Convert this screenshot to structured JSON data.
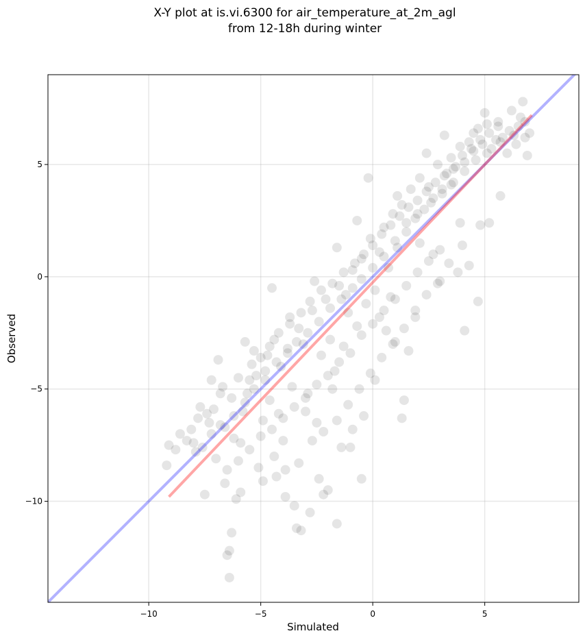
{
  "chart_data": {
    "type": "scatter",
    "title": "X-Y plot at is.vi.6300 for air_temperature_at_2m_agl",
    "subtitle": "from 12-18h during winter",
    "xlabel": "Simulated",
    "ylabel": "Observed",
    "xlim": [
      -14.5,
      9.2
    ],
    "ylim": [
      -14.5,
      9.0
    ],
    "xticks": [
      -10,
      -5,
      0,
      5
    ],
    "yticks": [
      -10,
      -5,
      0,
      5
    ],
    "xtick_labels": [
      "−10",
      "−5",
      "0",
      "5"
    ],
    "ytick_labels": [
      "−10",
      "−5",
      "0",
      "5"
    ],
    "grid": true,
    "point_color": "#000000",
    "point_opacity": 0.1,
    "points": [
      [
        -9.2,
        -8.4
      ],
      [
        -9.1,
        -7.5
      ],
      [
        -8.8,
        -7.7
      ],
      [
        -8.6,
        -7.0
      ],
      [
        -8.3,
        -7.3
      ],
      [
        -8.1,
        -6.8
      ],
      [
        -7.9,
        -7.8
      ],
      [
        -7.7,
        -5.8
      ],
      [
        -7.6,
        -7.6
      ],
      [
        -7.5,
        -9.7
      ],
      [
        -7.3,
        -6.5
      ],
      [
        -7.2,
        -4.6
      ],
      [
        -7.0,
        -8.1
      ],
      [
        -6.9,
        -3.7
      ],
      [
        -6.8,
        -5.2
      ],
      [
        -6.6,
        -6.7
      ],
      [
        -6.5,
        -12.4
      ],
      [
        -6.4,
        -13.4
      ],
      [
        -6.4,
        -12.2
      ],
      [
        -6.3,
        -11.4
      ],
      [
        -6.1,
        -9.9
      ],
      [
        -5.9,
        -7.4
      ],
      [
        -5.7,
        -2.9
      ],
      [
        -5.5,
        -4.6
      ],
      [
        -5.3,
        -3.3
      ],
      [
        -5.1,
        -8.5
      ],
      [
        -4.9,
        -6.4
      ],
      [
        -4.7,
        -3.5
      ],
      [
        -4.5,
        -0.5
      ],
      [
        -4.3,
        -8.9
      ],
      [
        -4.1,
        -4.0
      ],
      [
        -3.9,
        -9.8
      ],
      [
        -3.7,
        -1.8
      ],
      [
        -3.5,
        -10.2
      ],
      [
        -3.4,
        -11.2
      ],
      [
        -3.2,
        -11.3
      ],
      [
        -3.0,
        -6.0
      ],
      [
        -2.8,
        -10.5
      ],
      [
        -2.6,
        -0.2
      ],
      [
        -2.4,
        -9.0
      ],
      [
        -2.2,
        -9.7
      ],
      [
        -2.0,
        -9.5
      ],
      [
        -1.8,
        -5.0
      ],
      [
        -1.6,
        -11.0
      ],
      [
        -1.6,
        1.3
      ],
      [
        -1.4,
        -7.6
      ],
      [
        -1.2,
        -0.8
      ],
      [
        -1.0,
        -7.6
      ],
      [
        -0.9,
        -6.8
      ],
      [
        -0.7,
        2.5
      ],
      [
        -0.5,
        -9.0
      ],
      [
        -0.4,
        -6.2
      ],
      [
        -0.2,
        4.4
      ],
      [
        0.1,
        -4.6
      ],
      [
        0.3,
        -1.8
      ],
      [
        0.6,
        -2.4
      ],
      [
        0.8,
        -0.9
      ],
      [
        1.0,
        -2.9
      ],
      [
        1.1,
        3.6
      ],
      [
        1.3,
        -6.3
      ],
      [
        1.4,
        -5.5
      ],
      [
        1.6,
        -3.3
      ],
      [
        1.9,
        -1.5
      ],
      [
        2.1,
        1.5
      ],
      [
        2.4,
        5.5
      ],
      [
        2.7,
        1.0
      ],
      [
        3.0,
        -0.2
      ],
      [
        3.2,
        6.3
      ],
      [
        3.5,
        4.1
      ],
      [
        3.8,
        0.2
      ],
      [
        4.0,
        1.4
      ],
      [
        4.1,
        -2.4
      ],
      [
        4.3,
        0.5
      ],
      [
        4.5,
        6.4
      ],
      [
        4.7,
        -1.1
      ],
      [
        4.8,
        2.3
      ],
      [
        5.0,
        7.3
      ],
      [
        5.2,
        2.4
      ],
      [
        5.5,
        6.1
      ],
      [
        5.7,
        3.6
      ],
      [
        6.0,
        5.5
      ],
      [
        6.2,
        7.4
      ],
      [
        6.5,
        6.7
      ],
      [
        6.7,
        7.8
      ],
      [
        6.9,
        5.4
      ],
      [
        7.0,
        6.4
      ],
      [
        -6.2,
        -7.2
      ],
      [
        -5.8,
        -6.0
      ],
      [
        -5.6,
        -5.2
      ],
      [
        -5.2,
        -4.4
      ],
      [
        -4.8,
        -4.6
      ],
      [
        -4.6,
        -5.5
      ],
      [
        -4.4,
        -2.8
      ],
      [
        -4.2,
        -6.1
      ],
      [
        -4.0,
        -7.3
      ],
      [
        -3.8,
        -3.2
      ],
      [
        -3.6,
        -4.9
      ],
      [
        -3.3,
        -2.3
      ],
      [
        -3.1,
        -3.0
      ],
      [
        -2.9,
        -5.2
      ],
      [
        -2.7,
        -1.5
      ],
      [
        -2.5,
        -6.5
      ],
      [
        -2.3,
        -3.5
      ],
      [
        -2.1,
        -1.0
      ],
      [
        -1.9,
        -2.8
      ],
      [
        -1.7,
        -4.2
      ],
      [
        -1.5,
        -0.4
      ],
      [
        -1.3,
        -3.1
      ],
      [
        -1.1,
        -1.6
      ],
      [
        -0.9,
        0.3
      ],
      [
        -0.7,
        -2.2
      ],
      [
        -0.5,
        0.8
      ],
      [
        -0.3,
        -1.2
      ],
      [
        -0.1,
        1.7
      ],
      [
        0.1,
        -0.6
      ],
      [
        0.3,
        1.1
      ],
      [
        0.5,
        2.2
      ],
      [
        0.7,
        0.4
      ],
      [
        0.9,
        2.8
      ],
      [
        1.1,
        1.3
      ],
      [
        1.3,
        3.2
      ],
      [
        1.5,
        2.0
      ],
      [
        1.7,
        3.9
      ],
      [
        1.9,
        2.6
      ],
      [
        2.1,
        4.4
      ],
      [
        2.3,
        3.0
      ],
      [
        2.5,
        4.0
      ],
      [
        2.7,
        3.5
      ],
      [
        2.9,
        5.0
      ],
      [
        3.1,
        3.7
      ],
      [
        3.3,
        4.6
      ],
      [
        3.5,
        5.3
      ],
      [
        3.7,
        4.9
      ],
      [
        3.9,
        5.8
      ],
      [
        4.1,
        5.1
      ],
      [
        4.3,
        6.0
      ],
      [
        4.5,
        5.6
      ],
      [
        4.7,
        6.6
      ],
      [
        4.9,
        5.9
      ],
      [
        5.1,
        6.8
      ],
      [
        5.3,
        5.7
      ],
      [
        5.6,
        6.9
      ],
      [
        5.8,
        6.2
      ],
      [
        6.1,
        6.5
      ],
      [
        6.4,
        5.9
      ],
      [
        6.6,
        7.1
      ],
      [
        6.8,
        6.2
      ],
      [
        -8.0,
        -7.4
      ],
      [
        -7.4,
        -6.1
      ],
      [
        -7.1,
        -5.9
      ],
      [
        -6.7,
        -4.9
      ],
      [
        -6.3,
        -5.4
      ],
      [
        -6.0,
        -4.5
      ],
      [
        -5.4,
        -3.9
      ],
      [
        -5.0,
        -3.6
      ],
      [
        -4.6,
        -3.1
      ],
      [
        -4.2,
        -2.5
      ],
      [
        -3.7,
        -2.1
      ],
      [
        -3.2,
        -1.6
      ],
      [
        -2.8,
        -1.1
      ],
      [
        -2.3,
        -0.6
      ],
      [
        -1.8,
        -0.3
      ],
      [
        -1.3,
        0.2
      ],
      [
        -0.8,
        0.6
      ],
      [
        -0.4,
        1.0
      ],
      [
        0.0,
        1.4
      ],
      [
        0.4,
        1.9
      ],
      [
        0.8,
        2.3
      ],
      [
        1.2,
        2.7
      ],
      [
        1.6,
        3.1
      ],
      [
        2.0,
        3.4
      ],
      [
        2.4,
        3.8
      ],
      [
        2.8,
        4.2
      ],
      [
        3.2,
        4.5
      ],
      [
        3.6,
        4.8
      ],
      [
        4.0,
        5.4
      ],
      [
        4.4,
        5.7
      ],
      [
        4.8,
        6.1
      ],
      [
        5.2,
        6.4
      ],
      [
        5.6,
        6.7
      ],
      [
        -6.5,
        -8.6
      ],
      [
        -6.0,
        -8.2
      ],
      [
        -5.5,
        -7.7
      ],
      [
        -5.0,
        -7.1
      ],
      [
        -4.5,
        -6.8
      ],
      [
        -4.0,
        -6.3
      ],
      [
        -3.5,
        -5.8
      ],
      [
        -3.0,
        -5.4
      ],
      [
        -2.5,
        -4.8
      ],
      [
        -2.0,
        -4.4
      ],
      [
        -1.5,
        -3.8
      ],
      [
        -1.0,
        -3.4
      ],
      [
        -0.5,
        -2.6
      ],
      [
        0.0,
        -2.1
      ],
      [
        0.5,
        -1.5
      ],
      [
        1.0,
        -1.0
      ],
      [
        1.5,
        -0.4
      ],
      [
        2.0,
        0.2
      ],
      [
        2.5,
        0.7
      ],
      [
        3.0,
        1.2
      ],
      [
        -6.6,
        -9.2
      ],
      [
        -5.9,
        -9.6
      ],
      [
        -4.9,
        -9.1
      ],
      [
        -4.4,
        -8.0
      ],
      [
        -3.9,
        -8.6
      ],
      [
        -3.3,
        -8.3
      ],
      [
        -2.7,
        -7.3
      ],
      [
        -2.2,
        -6.9
      ],
      [
        -1.6,
        -6.4
      ],
      [
        -1.1,
        -5.7
      ],
      [
        -0.6,
        -5.0
      ],
      [
        -0.1,
        -4.3
      ],
      [
        0.4,
        -3.6
      ],
      [
        0.9,
        -3.0
      ],
      [
        1.4,
        -2.3
      ],
      [
        1.9,
        -1.8
      ],
      [
        2.4,
        -0.8
      ],
      [
        2.9,
        -0.3
      ],
      [
        3.4,
        0.6
      ],
      [
        3.9,
        2.4
      ],
      [
        -7.8,
        -6.3
      ],
      [
        -7.2,
        -7.0
      ],
      [
        -6.8,
        -6.6
      ],
      [
        -6.2,
        -6.2
      ],
      [
        -5.7,
        -5.6
      ],
      [
        -5.3,
        -5.0
      ],
      [
        -4.8,
        -4.2
      ],
      [
        -4.3,
        -3.8
      ],
      [
        -3.8,
        -3.4
      ],
      [
        -3.4,
        -2.9
      ],
      [
        -2.9,
        -2.5
      ],
      [
        -2.4,
        -2.0
      ],
      [
        -1.9,
        -1.4
      ],
      [
        -1.4,
        -1.0
      ],
      [
        -0.9,
        -0.5
      ],
      [
        -0.5,
        -0.1
      ],
      [
        0.0,
        0.4
      ],
      [
        0.5,
        0.9
      ],
      [
        1.0,
        1.6
      ],
      [
        1.5,
        2.4
      ],
      [
        2.0,
        2.8
      ],
      [
        2.6,
        3.3
      ],
      [
        3.1,
        3.9
      ],
      [
        3.6,
        4.2
      ],
      [
        4.1,
        4.7
      ],
      [
        4.6,
        5.2
      ],
      [
        5.1,
        5.5
      ],
      [
        5.7,
        6.0
      ],
      [
        6.3,
        6.3
      ],
      [
        6.8,
        6.9
      ]
    ],
    "series": [
      {
        "color": "#0000ff",
        "opacity": 0.3,
        "x": [
          -14.5,
          9.2
        ],
        "y": [
          -14.5,
          9.2
        ]
      },
      {
        "color": "#ff0000",
        "opacity": 0.35,
        "x": [
          -9.1,
          7.1
        ],
        "y": [
          -9.8,
          7.2
        ]
      }
    ]
  }
}
